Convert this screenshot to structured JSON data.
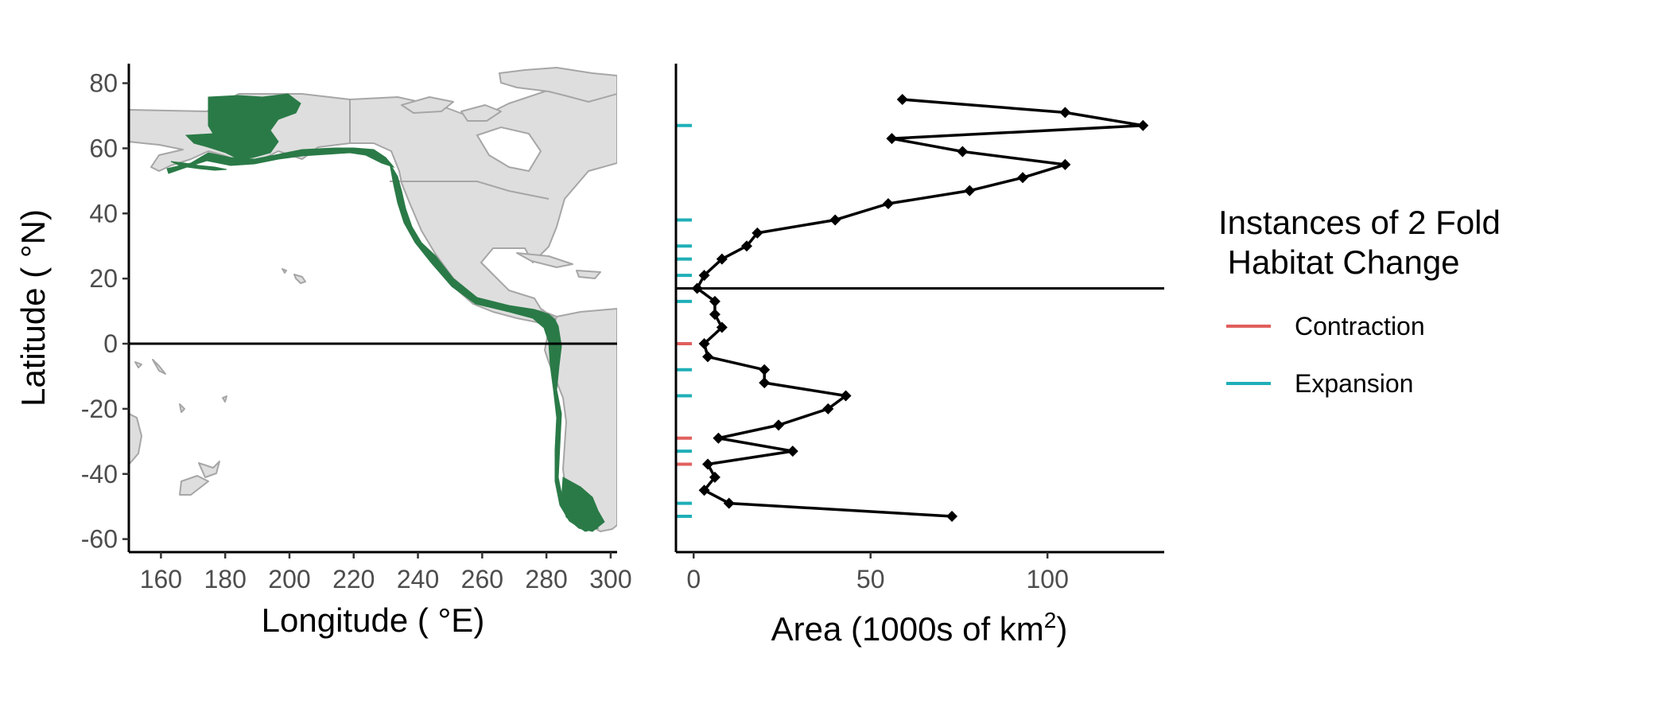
{
  "chart_data": [
    {
      "type": "map",
      "xlabel": "Longitude ( °E)",
      "ylabel": "Latitude ( °N)",
      "xlim": [
        150,
        302
      ],
      "ylim": [
        -64,
        86
      ],
      "x_ticks": [
        160,
        180,
        200,
        220,
        240,
        260,
        280,
        300
      ],
      "y_ticks": [
        -60,
        -40,
        -20,
        0,
        20,
        40,
        60,
        80
      ],
      "reference_line_lat": 0,
      "land_color": "#dedede",
      "border_color": "#a6a6a6",
      "habitat_color": "#2a7a47",
      "grid": false
    },
    {
      "type": "line",
      "xlabel_main": "Area (1000s of km",
      "xlabel_sup": "2",
      "xlabel_close": ")",
      "xlim": [
        -5,
        133
      ],
      "ylim": [
        -64,
        86
      ],
      "x_ticks": [
        0,
        50,
        100
      ],
      "reference_line_lat": 17,
      "grid": false,
      "series": [
        {
          "points": [
            {
              "area": 59,
              "lat": 75
            },
            {
              "area": 105,
              "lat": 71
            },
            {
              "area": 127,
              "lat": 67
            },
            {
              "area": 56,
              "lat": 63
            },
            {
              "area": 76,
              "lat": 59
            },
            {
              "area": 105,
              "lat": 55
            },
            {
              "area": 93,
              "lat": 51
            },
            {
              "area": 78,
              "lat": 47
            },
            {
              "area": 55,
              "lat": 43
            },
            {
              "area": 40,
              "lat": 38
            },
            {
              "area": 18,
              "lat": 34
            },
            {
              "area": 15,
              "lat": 30
            },
            {
              "area": 8,
              "lat": 26
            },
            {
              "area": 3,
              "lat": 21
            },
            {
              "area": 1,
              "lat": 17
            },
            {
              "area": 6,
              "lat": 13
            },
            {
              "area": 6,
              "lat": 9
            },
            {
              "area": 8,
              "lat": 5
            },
            {
              "area": 3,
              "lat": 0
            },
            {
              "area": 4,
              "lat": -4
            },
            {
              "area": 20,
              "lat": -8
            },
            {
              "area": 20,
              "lat": -12
            },
            {
              "area": 43,
              "lat": -16
            },
            {
              "area": 38,
              "lat": -20
            },
            {
              "area": 24,
              "lat": -25
            },
            {
              "area": 7,
              "lat": -29
            },
            {
              "area": 28,
              "lat": -33
            },
            {
              "area": 4,
              "lat": -37
            },
            {
              "area": 6,
              "lat": -41
            },
            {
              "area": 3,
              "lat": -45
            },
            {
              "area": 10,
              "lat": -49
            },
            {
              "area": 73,
              "lat": -53
            }
          ]
        }
      ],
      "habitat_change_marks": [
        {
          "lat": 67,
          "type": "Expansion"
        },
        {
          "lat": 38,
          "type": "Expansion"
        },
        {
          "lat": 30,
          "type": "Expansion"
        },
        {
          "lat": 26,
          "type": "Expansion"
        },
        {
          "lat": 21,
          "type": "Expansion"
        },
        {
          "lat": 13,
          "type": "Expansion"
        },
        {
          "lat": 0,
          "type": "Contraction"
        },
        {
          "lat": -8,
          "type": "Expansion"
        },
        {
          "lat": -16,
          "type": "Expansion"
        },
        {
          "lat": -29,
          "type": "Contraction"
        },
        {
          "lat": -33,
          "type": "Expansion"
        },
        {
          "lat": -37,
          "type": "Contraction"
        },
        {
          "lat": -49,
          "type": "Expansion"
        },
        {
          "lat": -53,
          "type": "Expansion"
        }
      ]
    }
  ],
  "legend": {
    "title_line1": "Instances of 2 Fold",
    "title_line2": " Habitat Change",
    "items": [
      {
        "label": "Contraction",
        "color": "#e0605e"
      },
      {
        "label": "Expansion",
        "color": "#1fafb8"
      }
    ]
  }
}
